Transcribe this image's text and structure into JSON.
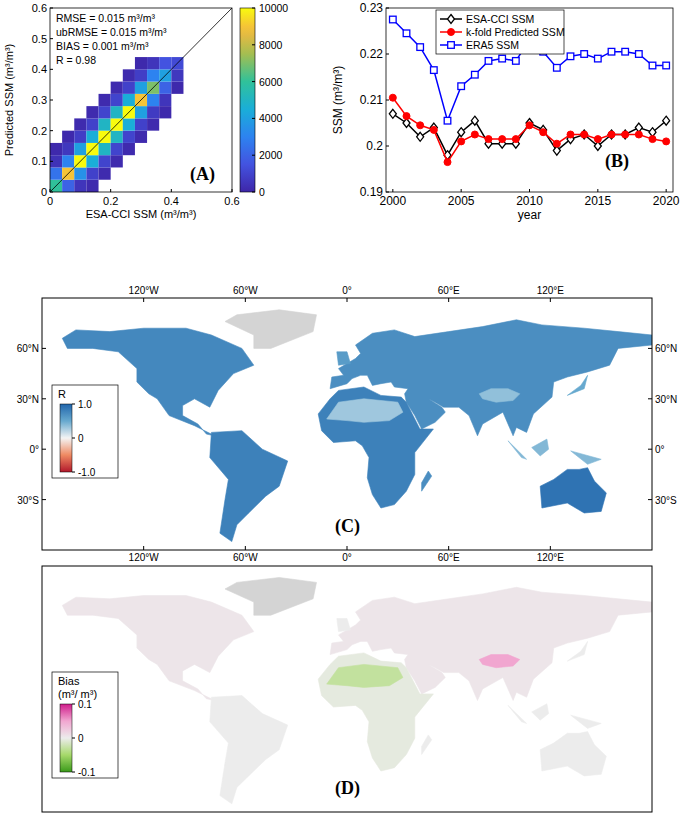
{
  "chart_data": [
    {
      "type": "heatmap",
      "panel_label": "(A)",
      "xlabel": "ESA-CCI SSM (m³/m³)",
      "ylabel": "Predicted  SSM (m³/m³)",
      "annotations": [
        "RMSE = 0.015  m³/m³",
        "ubRMSE = 0.015 m³/m³",
        "BIAS = 0.001  m³/m³",
        "R = 0.98"
      ],
      "xlim": [
        0,
        0.6
      ],
      "ylim": [
        0,
        0.6
      ],
      "xticks": [
        0,
        0.2,
        0.4,
        0.6
      ],
      "yticks": [
        0,
        0.1,
        0.2,
        0.3,
        0.4,
        0.5,
        0.6
      ],
      "cell_size": 0.04,
      "cells": [
        [
          0.02,
          0.02,
          6000
        ],
        [
          0.02,
          0.06,
          2500
        ],
        [
          0.02,
          0.1,
          400
        ],
        [
          0.02,
          0.14,
          100
        ],
        [
          0.06,
          0.02,
          2000
        ],
        [
          0.06,
          0.06,
          9000
        ],
        [
          0.06,
          0.1,
          3000
        ],
        [
          0.06,
          0.14,
          600
        ],
        [
          0.06,
          0.18,
          100
        ],
        [
          0.1,
          0.02,
          500
        ],
        [
          0.1,
          0.06,
          3500
        ],
        [
          0.1,
          0.1,
          10000
        ],
        [
          0.1,
          0.14,
          4000
        ],
        [
          0.1,
          0.18,
          800
        ],
        [
          0.1,
          0.22,
          150
        ],
        [
          0.14,
          0.02,
          150
        ],
        [
          0.14,
          0.06,
          900
        ],
        [
          0.14,
          0.1,
          4500
        ],
        [
          0.14,
          0.14,
          10000
        ],
        [
          0.14,
          0.18,
          4500
        ],
        [
          0.14,
          0.22,
          900
        ],
        [
          0.14,
          0.26,
          150
        ],
        [
          0.18,
          0.06,
          150
        ],
        [
          0.18,
          0.1,
          1000
        ],
        [
          0.18,
          0.14,
          5000
        ],
        [
          0.18,
          0.18,
          10000
        ],
        [
          0.18,
          0.22,
          5000
        ],
        [
          0.18,
          0.26,
          1000
        ],
        [
          0.18,
          0.3,
          150
        ],
        [
          0.22,
          0.1,
          150
        ],
        [
          0.22,
          0.14,
          1000
        ],
        [
          0.22,
          0.18,
          5000
        ],
        [
          0.22,
          0.22,
          10000
        ],
        [
          0.22,
          0.26,
          5000
        ],
        [
          0.22,
          0.3,
          1000
        ],
        [
          0.22,
          0.34,
          150
        ],
        [
          0.26,
          0.14,
          150
        ],
        [
          0.26,
          0.18,
          1000
        ],
        [
          0.26,
          0.22,
          4500
        ],
        [
          0.26,
          0.26,
          10000
        ],
        [
          0.26,
          0.3,
          4500
        ],
        [
          0.26,
          0.34,
          900
        ],
        [
          0.26,
          0.38,
          150
        ],
        [
          0.3,
          0.18,
          150
        ],
        [
          0.3,
          0.22,
          900
        ],
        [
          0.3,
          0.26,
          4000
        ],
        [
          0.3,
          0.3,
          9000
        ],
        [
          0.3,
          0.34,
          4000
        ],
        [
          0.3,
          0.38,
          800
        ],
        [
          0.3,
          0.42,
          100
        ],
        [
          0.34,
          0.22,
          150
        ],
        [
          0.34,
          0.26,
          700
        ],
        [
          0.34,
          0.3,
          3000
        ],
        [
          0.34,
          0.34,
          7000
        ],
        [
          0.34,
          0.38,
          3000
        ],
        [
          0.34,
          0.42,
          500
        ],
        [
          0.38,
          0.26,
          100
        ],
        [
          0.38,
          0.3,
          500
        ],
        [
          0.38,
          0.34,
          2000
        ],
        [
          0.38,
          0.38,
          4000
        ],
        [
          0.38,
          0.42,
          1500
        ],
        [
          0.42,
          0.34,
          100
        ],
        [
          0.42,
          0.38,
          600
        ],
        [
          0.42,
          0.42,
          1200
        ]
      ],
      "clim": [
        0,
        10000
      ],
      "cticks": [
        0,
        2000,
        4000,
        6000,
        8000,
        10000
      ]
    },
    {
      "type": "line",
      "panel_label": "(B)",
      "xlabel": "year",
      "ylabel": "SSM (m³/m³)",
      "x": [
        2000,
        2001,
        2002,
        2003,
        2004,
        2005,
        2006,
        2007,
        2008,
        2009,
        2010,
        2011,
        2012,
        2013,
        2014,
        2015,
        2016,
        2017,
        2018,
        2019,
        2020
      ],
      "series": [
        {
          "name": "ESA-CCI SSM",
          "color": "#000000",
          "marker": "diamond",
          "values": [
            0.207,
            0.205,
            0.202,
            0.204,
            0.198,
            0.203,
            0.2055,
            0.2005,
            0.2005,
            0.2005,
            0.205,
            0.2035,
            0.199,
            0.2015,
            0.2025,
            0.2,
            0.2025,
            0.2025,
            0.204,
            0.203,
            0.2055
          ]
        },
        {
          "name": "k-fold Predicted SSM",
          "color": "#ff0000",
          "marker": "circle",
          "values": [
            0.2105,
            0.2065,
            0.2045,
            0.2035,
            0.1965,
            0.201,
            0.2025,
            0.2015,
            0.2015,
            0.2015,
            0.2045,
            0.203,
            0.2005,
            0.2025,
            0.2025,
            0.2015,
            0.2025,
            0.2025,
            0.2025,
            0.2015,
            0.201
          ]
        },
        {
          "name": "ERA5 SSM",
          "color": "#0000ff",
          "marker": "square",
          "values": [
            0.2275,
            0.2245,
            0.2215,
            0.2165,
            0.2055,
            0.213,
            0.2155,
            0.2185,
            0.219,
            0.2185,
            0.223,
            0.2205,
            0.217,
            0.2195,
            0.22,
            0.219,
            0.2205,
            0.2205,
            0.22,
            0.2175,
            0.2175
          ]
        }
      ],
      "xlim": [
        1999.5,
        2020.5
      ],
      "ylim": [
        0.19,
        0.23
      ],
      "xticks": [
        2000,
        2005,
        2010,
        2015,
        2020
      ],
      "yticks": [
        0.19,
        0.2,
        0.21,
        0.22,
        0.23
      ],
      "legend": "top-left"
    },
    {
      "type": "map",
      "panel_label": "(C)",
      "xlim": [
        -180,
        180
      ],
      "ylim": [
        -60,
        90
      ],
      "xticks": [
        {
          "value": -120,
          "label": "120°W"
        },
        {
          "value": -60,
          "label": "60°W"
        },
        {
          "value": 0,
          "label": "0°"
        },
        {
          "value": 60,
          "label": "60°E"
        },
        {
          "value": 120,
          "label": "120°E"
        }
      ],
      "yticks": [
        {
          "value": 60,
          "label": "60°N"
        },
        {
          "value": 30,
          "label": "30°N"
        },
        {
          "value": 0,
          "label": "0°"
        },
        {
          "value": -30,
          "label": "30°S"
        }
      ],
      "values": [
        0.75,
        null,
        0.8,
        0.7,
        0.8,
        0.9,
        0.6,
        0.5,
        0.7,
        0.4,
        0.4,
        0.4,
        0.3,
        0.35
      ],
      "clabel": [
        "R"
      ],
      "clim": [
        -1,
        1
      ],
      "cticks": [
        {
          "value": 1,
          "label": "1.0"
        },
        0,
        {
          "value": -1,
          "label": "-1.0"
        }
      ]
    },
    {
      "type": "map",
      "panel_label": "(D)",
      "xlim": [
        -180,
        180
      ],
      "ylim": [
        -60,
        90
      ],
      "values": [
        0.005,
        null,
        0,
        0.005,
        -0.005,
        0,
        0,
        0,
        0,
        0,
        0,
        0,
        -0.03,
        0.05
      ],
      "clabel": [
        "Bias",
        "(m³/ m³)"
      ],
      "clim": [
        -0.1,
        0.1
      ],
      "cticks": [
        0.1,
        0,
        -0.1
      ]
    }
  ]
}
